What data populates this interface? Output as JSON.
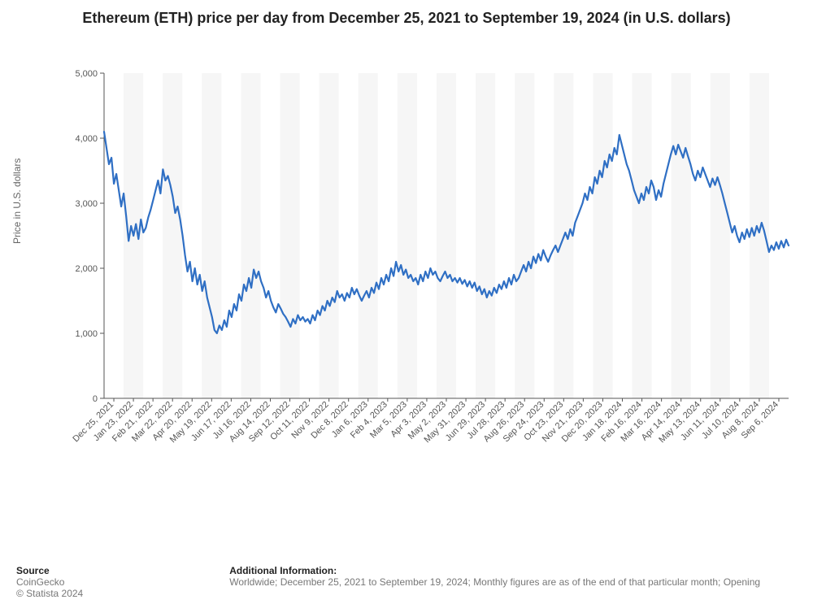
{
  "chart": {
    "type": "line",
    "title": "Ethereum (ETH) price per day from December 25, 2021 to September 19, 2024 (in U.S. dollars)",
    "ylabel": "Price in U.S. dollars",
    "line_color": "#2f6fc4",
    "line_width": 2.2,
    "background_color": "#ffffff",
    "band_color": "#f6f6f6",
    "axis_color": "#555555",
    "tick_font_size": 11,
    "title_font_size": 18,
    "ylim": [
      0,
      5000
    ],
    "ytick_step": 1000,
    "yticks": [
      0,
      1000,
      2000,
      3000,
      4000,
      5000
    ],
    "ytick_labels": [
      "0",
      "1,000",
      "2,000",
      "3,000",
      "4,000",
      "5,000"
    ],
    "x_labels": [
      "Dec 25, 2021",
      "Jan 23, 2022",
      "Feb 21, 2022",
      "Mar 22, 2022",
      "Apr 20, 2022",
      "May 19, 2022",
      "Jun 17, 2022",
      "Jul 16, 2022",
      "Aug 14, 2022",
      "Sep 12, 2022",
      "Oct 11, 2022",
      "Nov 9, 2022",
      "Dec 8, 2022",
      "Jan 6, 2023",
      "Feb 4, 2023",
      "Mar 5, 2023",
      "Apr 3, 2023",
      "May 2, 2023",
      "May 31, 2023",
      "Jun 29, 2023",
      "Jul 28, 2023",
      "Aug 26, 2023",
      "Sep 24, 2023",
      "Oct 23, 2023",
      "Nov 21, 2023",
      "Dec 20, 2023",
      "Jan 18, 2024",
      "Feb 16, 2024",
      "Mar 16, 2024",
      "Apr 14, 2024",
      "May 13, 2024",
      "Jun 11, 2024",
      "Jul 10, 2024",
      "Aug 8, 2024",
      "Sep 6, 2024"
    ],
    "x_label_rotation_deg": -45,
    "values": [
      4100,
      3850,
      3600,
      3700,
      3300,
      3450,
      3200,
      2950,
      3150,
      2800,
      2420,
      2650,
      2500,
      2680,
      2450,
      2750,
      2550,
      2620,
      2780,
      2900,
      3050,
      3200,
      3350,
      3150,
      3520,
      3350,
      3420,
      3280,
      3100,
      2850,
      2950,
      2750,
      2500,
      2200,
      1950,
      2100,
      1800,
      2000,
      1750,
      1900,
      1650,
      1800,
      1550,
      1400,
      1250,
      1050,
      1000,
      1120,
      1050,
      1200,
      1100,
      1350,
      1250,
      1450,
      1350,
      1600,
      1500,
      1750,
      1650,
      1850,
      1700,
      1980,
      1850,
      1950,
      1800,
      1700,
      1550,
      1650,
      1500,
      1400,
      1320,
      1450,
      1380,
      1300,
      1250,
      1180,
      1100,
      1220,
      1150,
      1280,
      1200,
      1250,
      1180,
      1220,
      1150,
      1280,
      1200,
      1350,
      1280,
      1420,
      1350,
      1500,
      1420,
      1550,
      1480,
      1650,
      1550,
      1600,
      1500,
      1620,
      1550,
      1700,
      1600,
      1680,
      1580,
      1500,
      1580,
      1650,
      1550,
      1700,
      1620,
      1780,
      1680,
      1850,
      1750,
      1900,
      1800,
      2000,
      1880,
      2100,
      1950,
      2050,
      1900,
      1980,
      1850,
      1900,
      1800,
      1850,
      1750,
      1900,
      1800,
      1950,
      1850,
      2000,
      1900,
      1950,
      1850,
      1800,
      1880,
      1950,
      1850,
      1900,
      1800,
      1850,
      1780,
      1850,
      1760,
      1820,
      1720,
      1800,
      1700,
      1780,
      1650,
      1720,
      1600,
      1680,
      1550,
      1650,
      1580,
      1700,
      1620,
      1750,
      1680,
      1800,
      1700,
      1850,
      1750,
      1900,
      1800,
      1850,
      1950,
      2050,
      1950,
      2100,
      2000,
      2180,
      2080,
      2220,
      2120,
      2280,
      2180,
      2100,
      2200,
      2280,
      2350,
      2250,
      2350,
      2450,
      2550,
      2450,
      2600,
      2500,
      2700,
      2800,
      2900,
      3000,
      3150,
      3050,
      3250,
      3150,
      3400,
      3300,
      3500,
      3400,
      3650,
      3550,
      3750,
      3650,
      3850,
      3750,
      4050,
      3900,
      3750,
      3600,
      3500,
      3350,
      3200,
      3100,
      3000,
      3150,
      3050,
      3250,
      3150,
      3350,
      3250,
      3050,
      3200,
      3100,
      3300,
      3450,
      3600,
      3750,
      3880,
      3750,
      3900,
      3800,
      3700,
      3850,
      3720,
      3600,
      3450,
      3350,
      3500,
      3400,
      3550,
      3450,
      3350,
      3250,
      3380,
      3280,
      3400,
      3280,
      3150,
      3000,
      2850,
      2700,
      2550,
      2650,
      2500,
      2400,
      2550,
      2450,
      2600,
      2480,
      2620,
      2500,
      2650,
      2550,
      2700,
      2580,
      2420,
      2250,
      2350,
      2280,
      2400,
      2300,
      2420,
      2320,
      2440,
      2350
    ]
  },
  "footer": {
    "source_heading": "Source",
    "source_name": "CoinGecko",
    "copyright": "© Statista 2024",
    "additional_heading": "Additional Information:",
    "additional_text": "Worldwide; December 25, 2021 to September 19, 2024; Monthly figures are as of the end of that particular month; Opening"
  }
}
